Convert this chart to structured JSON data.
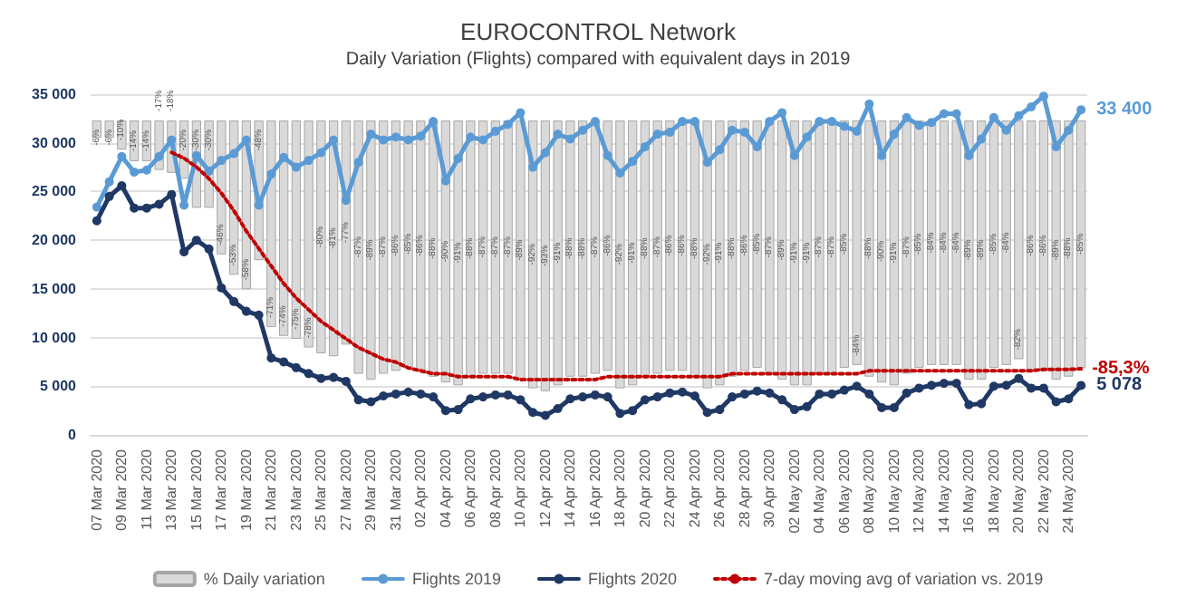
{
  "chart_data": {
    "type": "line",
    "title": "EUROCONTROL Network",
    "subtitle": "Daily Variation (Flights) compared with equivalent days in 2019",
    "categories": [
      "07 Mar 2020",
      null,
      "09 Mar 2020",
      null,
      "11 Mar 2020",
      null,
      "13 Mar 2020",
      null,
      "15 Mar 2020",
      null,
      "17 Mar 2020",
      null,
      "19 Mar 2020",
      null,
      "21 Mar 2020",
      null,
      "23 Mar 2020",
      null,
      "25 Mar 2020",
      null,
      "27 Mar 2020",
      null,
      "29 Mar 2020",
      null,
      "31 Mar 2020",
      null,
      "02 Apr 2020",
      null,
      "04 Apr 2020",
      null,
      "06 Apr 2020",
      null,
      "08 Apr 2020",
      null,
      "10 Apr 2020",
      null,
      "12 Apr 2020",
      null,
      "14 Apr 2020",
      null,
      "16 Apr 2020",
      null,
      "18 Apr 2020",
      null,
      "20 Apr 2020",
      null,
      "22 Apr 2020",
      null,
      "24 Apr 2020",
      null,
      "26 Apr 2020",
      null,
      "28 Apr 2020",
      null,
      "30 Apr 2020",
      null,
      "02 May 2020",
      null,
      "04 May 2020",
      null,
      "06 May 2020",
      null,
      "08 May 2020",
      null,
      "10 May 2020",
      null,
      "12 May 2020",
      null,
      "14 May 2020",
      null,
      "16 May 2020",
      null,
      "18 May 2020",
      null,
      "20 May 2020",
      null,
      "22 May 2020",
      null,
      "24 May 2020",
      null
    ],
    "series": [
      {
        "name": "% Daily variation",
        "type": "bar",
        "axis": "y2",
        "color": "#d9d9d9",
        "values": [
          -6,
          -6,
          -10,
          -14,
          -14,
          -17,
          -18,
          -20,
          -30,
          -30,
          -46,
          -53,
          -58,
          -48,
          -71,
          -74,
          -75,
          -78,
          -80,
          -81,
          -77,
          -87,
          -89,
          -87,
          -86,
          -85,
          -86,
          -88,
          -90,
          -91,
          -88,
          -87,
          -87,
          -87,
          -89,
          -92,
          -93,
          -91,
          -88,
          -88,
          -87,
          -86,
          -92,
          -91,
          -88,
          -87,
          -86,
          -86,
          -88,
          -92,
          -91,
          -88,
          -86,
          -85,
          -87,
          -89,
          -91,
          -91,
          -87,
          -87,
          -85,
          -84,
          -88,
          -90,
          -91,
          -87,
          -85,
          -84,
          -84,
          -84,
          -89,
          -89,
          -85,
          -84,
          -82,
          -86,
          -86,
          -89,
          -88,
          -85
        ],
        "value_labels": [
          "-6%",
          "-6%",
          "-10%",
          "-14%",
          "-14%",
          "-17%",
          "-18%",
          "-20%",
          "-30%",
          "-30%",
          "-46%",
          "-53%",
          "-58%",
          "-48%",
          "-71%",
          "-74%",
          "-75%",
          "-78%",
          "-80%",
          "-81%",
          "-77%",
          "-87%",
          "-89%",
          "-87%",
          "-86%",
          "-85%",
          "-86%",
          "-88%",
          "-90%",
          "-91%",
          "-88%",
          "-87%",
          "-87%",
          "-87%",
          "-89%",
          "-92%",
          "-93%",
          "-91%",
          "-88%",
          "-88%",
          "-87%",
          "-86%",
          "-92%",
          "-91%",
          "-88%",
          "-87%",
          "-86%",
          "-86%",
          "-88%",
          "-92%",
          "-91%",
          "-88%",
          "-86%",
          "-85%",
          "-87%",
          "-89%",
          "-91%",
          "-91%",
          "-87%",
          "-87%",
          "-85%",
          "-84%",
          "-88%",
          "-90%",
          "-91%",
          "-87%",
          "-85%",
          "-84%",
          "-84%",
          "-84%",
          "-89%",
          "-89%",
          "-85%",
          "-84%",
          "-82%",
          "-86%",
          "-86%",
          "-89%",
          "-88%",
          "-85%"
        ]
      },
      {
        "name": "Flights 2019",
        "color": "#5b9bd5",
        "marker": "circle",
        "line_style": "solid",
        "values": [
          23400,
          26000,
          28600,
          27000,
          27200,
          28600,
          30300,
          23600,
          28700,
          27100,
          28200,
          28900,
          30300,
          23600,
          26800,
          28500,
          27500,
          28200,
          29000,
          30300,
          24100,
          28000,
          30900,
          30300,
          30600,
          30300,
          30700,
          32200,
          26100,
          28400,
          30600,
          30300,
          31200,
          31900,
          33100,
          27500,
          29000,
          30900,
          30400,
          31300,
          32200,
          28700,
          26900,
          28100,
          29600,
          30900,
          31100,
          32200,
          32200,
          28000,
          29300,
          31300,
          31100,
          29600,
          32200,
          33100,
          28700,
          30600,
          32200,
          32200,
          31700,
          31200,
          34000,
          28700,
          30900,
          32600,
          31800,
          32100,
          33000,
          33000,
          28700,
          30400,
          32600,
          31300,
          32800,
          33700,
          34800,
          29600,
          31300,
          33400
        ],
        "value_labels": [
          null,
          null,
          null,
          null,
          null,
          null,
          null,
          null,
          null,
          null,
          null,
          null,
          null,
          null,
          null,
          null,
          null,
          null,
          null,
          null,
          null,
          null,
          null,
          null,
          null,
          null,
          null,
          null,
          null,
          null,
          null,
          null,
          null,
          null,
          null,
          null,
          null,
          null,
          null,
          null,
          null,
          null,
          null,
          null,
          null,
          null,
          null,
          null,
          null,
          null,
          null,
          null,
          null,
          null,
          null,
          null,
          null,
          null,
          null,
          null,
          null,
          null,
          null,
          null,
          null,
          null,
          null,
          null,
          null,
          null,
          null,
          null,
          null,
          null,
          null,
          null,
          null,
          null,
          null,
          "33 400"
        ]
      },
      {
        "name": "Flights 2020",
        "color": "#1f3864",
        "marker": "circle",
        "line_style": "solid",
        "values": [
          22000,
          24500,
          25600,
          23300,
          23300,
          23700,
          24700,
          18800,
          20000,
          19100,
          15100,
          13700,
          12700,
          12300,
          7900,
          7500,
          6900,
          6300,
          5800,
          5900,
          5500,
          3600,
          3400,
          4000,
          4200,
          4400,
          4200,
          3900,
          2500,
          2600,
          3700,
          3900,
          4100,
          4100,
          3600,
          2300,
          2000,
          2700,
          3700,
          3900,
          4100,
          3900,
          2200,
          2500,
          3600,
          3900,
          4300,
          4400,
          4000,
          2300,
          2600,
          3900,
          4200,
          4500,
          4300,
          3600,
          2600,
          2900,
          4200,
          4200,
          4600,
          5000,
          4200,
          2800,
          2800,
          4300,
          4800,
          5100,
          5300,
          5300,
          3100,
          3200,
          5000,
          5100,
          5800,
          4800,
          4800,
          3400,
          3700,
          5078
        ],
        "value_labels": [
          null,
          null,
          null,
          null,
          null,
          null,
          null,
          null,
          null,
          null,
          null,
          null,
          null,
          null,
          null,
          null,
          null,
          null,
          null,
          null,
          null,
          null,
          null,
          null,
          null,
          null,
          null,
          null,
          null,
          null,
          null,
          null,
          null,
          null,
          null,
          null,
          null,
          null,
          null,
          null,
          null,
          null,
          null,
          null,
          null,
          null,
          null,
          null,
          null,
          null,
          null,
          null,
          null,
          null,
          null,
          null,
          null,
          null,
          null,
          null,
          null,
          null,
          null,
          null,
          null,
          null,
          null,
          null,
          null,
          null,
          null,
          null,
          null,
          null,
          null,
          null,
          null,
          null,
          null,
          "5 078"
        ]
      },
      {
        "name": "7-day moving avg of variation vs. 2019",
        "axis": "y2",
        "color": "#c00000",
        "marker": "none",
        "line_style": "dotted",
        "values": [
          null,
          null,
          null,
          null,
          null,
          null,
          -11,
          -13,
          -16,
          -20,
          -25,
          -31,
          -38,
          -44,
          -50,
          -56,
          -61,
          -65,
          -69,
          -72,
          -75,
          -78,
          -80,
          -82,
          -83,
          -85,
          -86,
          -87,
          -87,
          -88,
          -88,
          -88,
          -88,
          -88,
          -89,
          -89,
          -89,
          -89,
          -89,
          -89,
          -89,
          -88,
          -88,
          -88,
          -88,
          -88,
          -88,
          -88,
          -88,
          -88,
          -88,
          -87,
          -87,
          -87,
          -87,
          -87,
          -87,
          -87,
          -87,
          -87,
          -87,
          -87,
          -86,
          -86,
          -86,
          -86,
          -86,
          -86,
          -86,
          -86,
          -86,
          -86,
          -86,
          -86,
          -86,
          -86,
          -85.5,
          -85.5,
          -85.5,
          -85.3
        ],
        "value_labels": [
          null,
          null,
          null,
          null,
          null,
          null,
          null,
          null,
          null,
          null,
          null,
          null,
          null,
          null,
          null,
          null,
          null,
          null,
          null,
          null,
          null,
          null,
          null,
          null,
          null,
          null,
          null,
          null,
          null,
          null,
          null,
          null,
          null,
          null,
          null,
          null,
          null,
          null,
          null,
          null,
          null,
          null,
          null,
          null,
          null,
          null,
          null,
          null,
          null,
          null,
          null,
          null,
          null,
          null,
          null,
          null,
          null,
          null,
          null,
          null,
          null,
          null,
          null,
          null,
          null,
          null,
          null,
          null,
          null,
          null,
          null,
          null,
          null,
          null,
          null,
          null,
          null,
          null,
          null,
          "-85,3%"
        ]
      }
    ],
    "ylim": [
      0,
      35000
    ],
    "yticks": [
      {
        "value": 0,
        "label": "0"
      },
      {
        "value": 5000,
        "label": "5 000"
      },
      {
        "value": 10000,
        "label": "10 000"
      },
      {
        "value": 15000,
        "label": "15 000"
      },
      {
        "value": 20000,
        "label": "20 000"
      },
      {
        "value": 25000,
        "label": "25 000"
      },
      {
        "value": 30000,
        "label": "30 000"
      },
      {
        "value": 35000,
        "label": "35 000"
      }
    ],
    "y2lim": [
      -108,
      9
    ],
    "grid": "y",
    "legend": "bottom"
  }
}
